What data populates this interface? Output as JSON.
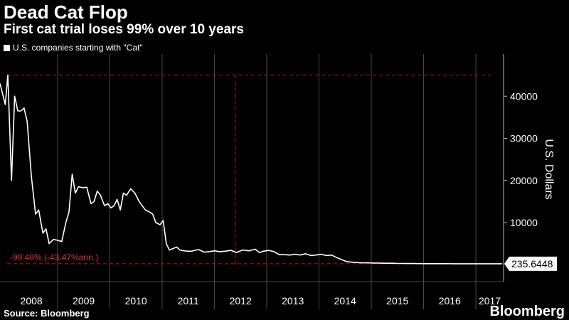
{
  "header": {
    "title": "Dead Cat Flop",
    "subtitle": "First cat trial loses 99% over 10 years"
  },
  "footer": {
    "source": "Source: Bloomberg",
    "brand": "Bloomberg"
  },
  "colors": {
    "background": "#000000",
    "line": "#ffffff",
    "annotation": "#c8102e",
    "grid": "#4a4a4a"
  },
  "chart_data": {
    "type": "line",
    "title": "",
    "xlabel": "",
    "ylabel": "U.S. Dollars",
    "ylim": [
      -4000,
      50000
    ],
    "yticks": [
      10000,
      20000,
      30000,
      40000
    ],
    "ytick_labels": [
      "10000",
      "20000",
      "30000",
      "40000"
    ],
    "xlim": [
      2007.9,
      2017.53
    ],
    "xticks": [
      "2008",
      "2009",
      "2010",
      "2011",
      "2012",
      "2013",
      "2014",
      "2015",
      "2016",
      "2017"
    ],
    "grid": true,
    "legend": "top-left",
    "series": [
      {
        "name": "U.S. companies starting with \"Cat\"",
        "x": [
          2007.9,
          2008.0,
          2008.05,
          2008.12,
          2008.18,
          2008.24,
          2008.3,
          2008.36,
          2008.42,
          2008.5,
          2008.58,
          2008.64,
          2008.72,
          2008.78,
          2008.84,
          2008.92,
          2009.0,
          2009.08,
          2009.16,
          2009.22,
          2009.28,
          2009.34,
          2009.4,
          2009.48,
          2009.56,
          2009.64,
          2009.7,
          2009.76,
          2009.82,
          2009.9,
          2009.96,
          2010.02,
          2010.08,
          2010.14,
          2010.2,
          2010.26,
          2010.32,
          2010.4,
          2010.48,
          2010.56,
          2010.62,
          2010.68,
          2010.76,
          2010.82,
          2010.88,
          2010.96,
          2011.02,
          2011.08,
          2011.14,
          2011.2,
          2011.28,
          2011.34,
          2011.42,
          2011.5,
          2011.56,
          2011.62,
          2011.7,
          2011.8,
          2011.9,
          2012.0,
          2012.1,
          2012.2,
          2012.32,
          2012.42,
          2012.54,
          2012.66,
          2012.78,
          2012.86,
          2012.94,
          2013.04,
          2013.14,
          2013.24,
          2013.34,
          2013.44,
          2013.54,
          2013.64,
          2013.74,
          2013.84,
          2013.94,
          2014.04,
          2014.14,
          2014.24,
          2014.34,
          2014.44,
          2014.54,
          2014.64,
          2014.74,
          2014.84,
          2014.94,
          2015.04,
          2015.14,
          2015.24,
          2015.34,
          2015.42,
          2015.5,
          2015.6,
          2015.7,
          2015.8,
          2015.9,
          2016.0,
          2016.2,
          2016.4,
          2016.6,
          2016.8,
          2017.0,
          2017.2,
          2017.4,
          2017.5
        ],
        "values": [
          43000,
          38000,
          45000,
          20000,
          40000,
          36500,
          36500,
          37200,
          34000,
          21000,
          12000,
          13000,
          7500,
          8500,
          5000,
          6000,
          5800,
          5500,
          10000,
          12500,
          21500,
          17000,
          18500,
          18300,
          18400,
          14500,
          15000,
          17500,
          16500,
          14000,
          14500,
          13500,
          14000,
          15500,
          13000,
          17000,
          16500,
          18000,
          17000,
          15000,
          14000,
          13000,
          12500,
          12000,
          10000,
          9500,
          10500,
          5000,
          3500,
          3800,
          4200,
          3500,
          3300,
          3200,
          3200,
          3400,
          3600,
          3000,
          3100,
          3300,
          3100,
          3200,
          3400,
          2900,
          3500,
          3300,
          3700,
          2900,
          3200,
          3400,
          3100,
          2400,
          2400,
          2300,
          2500,
          2300,
          2600,
          2200,
          2300,
          2500,
          2200,
          2300,
          1700,
          1200,
          700,
          600,
          500,
          450,
          450,
          400,
          400,
          350,
          350,
          350,
          300,
          300,
          290,
          280,
          270,
          260,
          250,
          245,
          240,
          238,
          237,
          236,
          235.6448,
          235.6448
        ]
      }
    ],
    "annotations": {
      "change_label": "-99.48% (-43.47%ann.)",
      "start_value": 45000,
      "start_x": 2008.05,
      "end_value": 235.6448,
      "end_x": 2017.5,
      "marker_x": 2012.4,
      "last_value_label": "235.6448"
    }
  }
}
